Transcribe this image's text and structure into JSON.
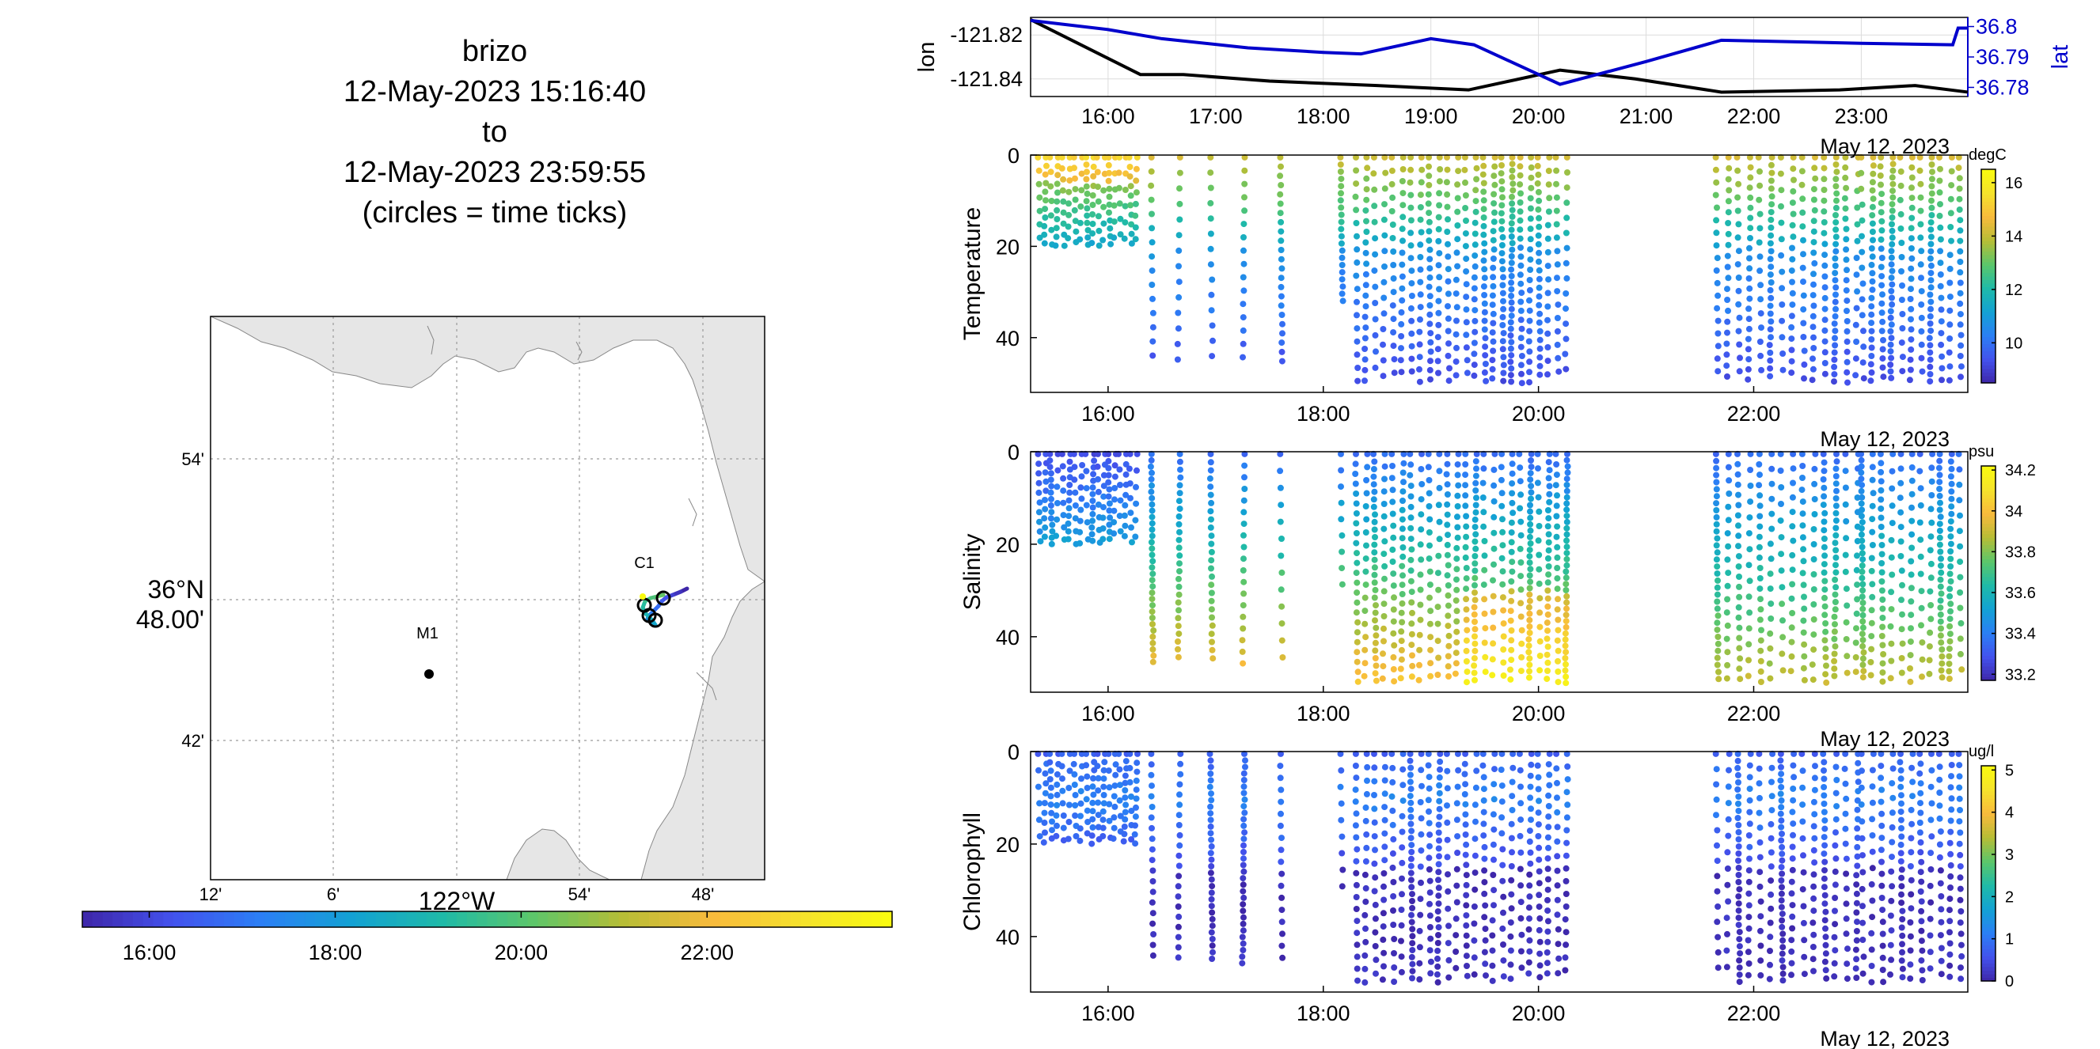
{
  "title_lines": [
    "brizo",
    "12-May-2023 15:16:40",
    "to",
    "12-May-2023 23:59:55",
    "(circles = time ticks)"
  ],
  "colors": {
    "lon": "#000000",
    "lat": "#0000cc",
    "land": "#e6e6e6",
    "colormap": [
      "#3e26a8",
      "#4352ed",
      "#2b7ff5",
      "#13a2d3",
      "#1fbaa8",
      "#5cc66a",
      "#b6bd36",
      "#f8ba3c",
      "#f5e22c",
      "#f9fb0e"
    ]
  },
  "chart_data": [
    {
      "type": "line",
      "panel": "lon-lat",
      "x_ticks": [
        "16:00",
        "17:00",
        "18:00",
        "19:00",
        "20:00",
        "21:00",
        "22:00",
        "23:00"
      ],
      "date_label": "May 12, 2023",
      "x_range_hours": [
        15.28,
        23.99
      ],
      "series": [
        {
          "name": "lon",
          "axis": "left",
          "ylabel": "lon",
          "y_ticks": [
            "-121.82",
            "-121.84"
          ],
          "ylim": [
            -121.848,
            -121.812
          ],
          "x": [
            15.28,
            16.3,
            16.7,
            17.5,
            18.5,
            19.35,
            20.2,
            20.9,
            21.7,
            22.8,
            23.5,
            23.99
          ],
          "y": [
            -121.813,
            -121.838,
            -121.838,
            -121.841,
            -121.843,
            -121.845,
            -121.836,
            -121.84,
            -121.846,
            -121.845,
            -121.843,
            -121.846
          ]
        },
        {
          "name": "lat",
          "axis": "right",
          "ylabel": "lat",
          "y_ticks": [
            "36.8",
            "36.79",
            "36.78"
          ],
          "ylim": [
            36.777,
            36.803
          ],
          "x": [
            15.28,
            16.0,
            16.5,
            17.3,
            18.0,
            18.35,
            19.0,
            19.4,
            20.2,
            21.0,
            21.7,
            23.0,
            23.85,
            23.9,
            23.99
          ],
          "y": [
            36.802,
            36.799,
            36.796,
            36.793,
            36.7915,
            36.791,
            36.796,
            36.794,
            36.781,
            36.7885,
            36.7955,
            36.7945,
            36.794,
            36.7995,
            36.7995
          ]
        }
      ]
    },
    {
      "type": "scatter",
      "panel": "Temperature",
      "ylabel": "Temperature",
      "ylim": [
        0,
        52
      ],
      "y_ticks": [
        0,
        20,
        40
      ],
      "x_ticks": [
        "16:00",
        "18:00",
        "20:00",
        "22:00"
      ],
      "x_range_hours": [
        15.28,
        23.99
      ],
      "date_label": "May 12, 2023",
      "colorbar": {
        "label": "degC",
        "range": [
          8.5,
          16.5
        ],
        "ticks": [
          10,
          12,
          14,
          16
        ]
      }
    },
    {
      "type": "scatter",
      "panel": "Salinity",
      "ylabel": "Salinity",
      "ylim": [
        0,
        52
      ],
      "y_ticks": [
        0,
        20,
        40
      ],
      "x_ticks": [
        "16:00",
        "18:00",
        "20:00",
        "22:00"
      ],
      "x_range_hours": [
        15.28,
        23.99
      ],
      "date_label": "May 12, 2023",
      "colorbar": {
        "label": "psu",
        "range": [
          33.17,
          34.22
        ],
        "ticks": [
          33.2,
          33.4,
          33.6,
          33.8,
          34,
          34.2
        ]
      }
    },
    {
      "type": "scatter",
      "panel": "Chlorophyll",
      "ylabel": "Chlorophyll",
      "ylim": [
        0,
        52
      ],
      "y_ticks": [
        0,
        20,
        40
      ],
      "x_ticks": [
        "16:00",
        "18:00",
        "20:00",
        "22:00"
      ],
      "x_range_hours": [
        15.28,
        23.99
      ],
      "date_label": "May 12, 2023",
      "colorbar": {
        "label": "ug/l",
        "range": [
          0,
          5.1
        ],
        "ticks": [
          0,
          1,
          2,
          3,
          4,
          5
        ]
      }
    },
    {
      "type": "scatter",
      "panel": "map",
      "lat_ticks": [
        "54'",
        "36°N 48.00'",
        "42'"
      ],
      "lon_ticks": [
        "12'",
        "6'",
        "122°W",
        "54'",
        "48'"
      ],
      "stations": [
        {
          "name": "M1",
          "lon": -122.03,
          "lat": 36.747
        },
        {
          "name": "C1",
          "lon": -121.848,
          "lat": 36.797
        }
      ],
      "time_colorbar": {
        "range_hours": [
          15.28,
          23.99
        ],
        "ticks": [
          "16:00",
          "18:00",
          "20:00",
          "22:00"
        ]
      }
    }
  ]
}
